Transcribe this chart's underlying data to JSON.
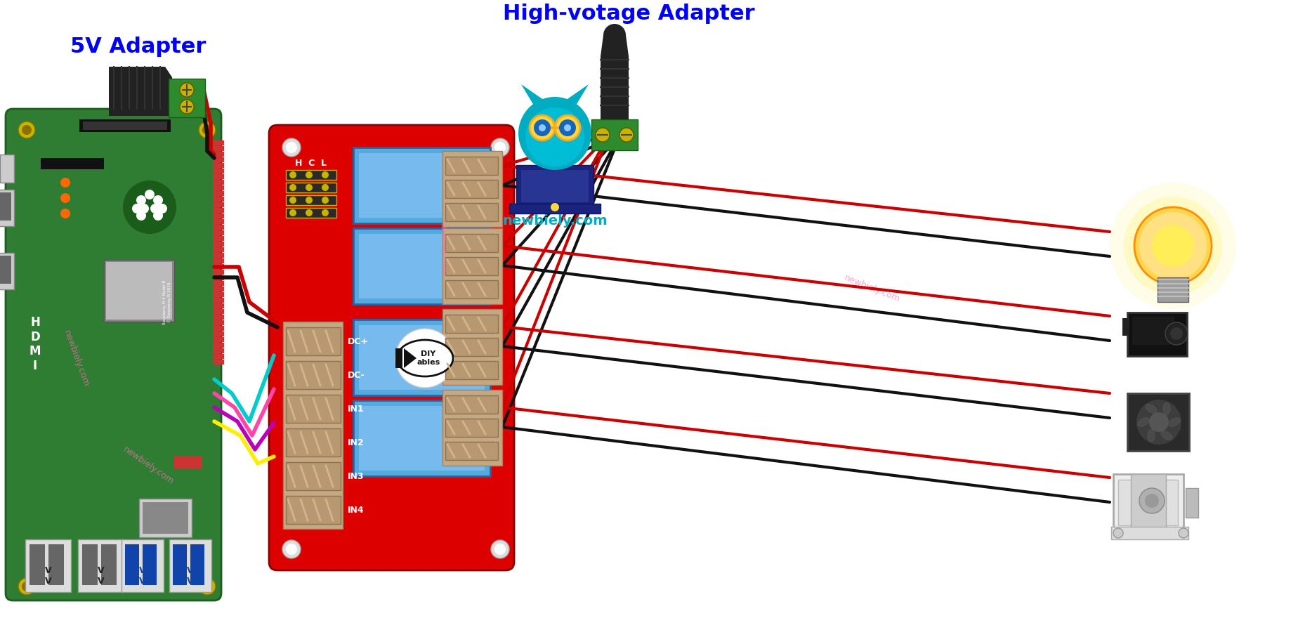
{
  "label_5v": "5V Adapter",
  "label_hv": "High-votage Adapter",
  "label_newbie": "newbiely.com",
  "label_color": "#0000FF",
  "bg_color": "#FFFFFF",
  "relay_red": "#DD0000",
  "relay_blue": "#55AADD",
  "pi_green": "#2E7D32",
  "pi_green_dark": "#1B5E20",
  "wire_red": "#CC0000",
  "wire_black": "#111111",
  "wire_cyan": "#00CCCC",
  "wire_purple": "#BB00BB",
  "wire_pink": "#FF44AA",
  "wire_yellow": "#FFEE00",
  "watermark_pink": "#FF69B4",
  "gold": "#C8B400",
  "gold_dark": "#8B7000",
  "green_terminal": "#2D8A2D",
  "screw_gray": "#888888"
}
